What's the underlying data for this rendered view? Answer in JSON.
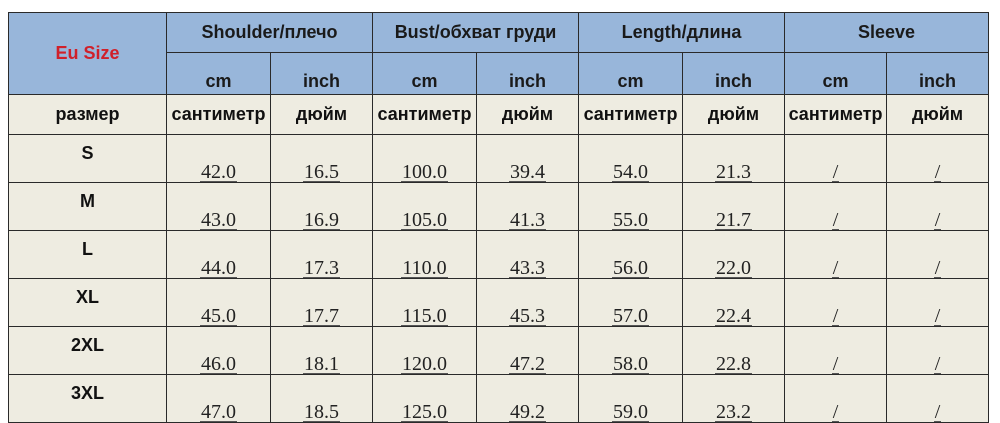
{
  "colors": {
    "header_bg": "#98b6da",
    "body_bg": "#eeece1",
    "eu_size_text": "#d0202a"
  },
  "header": {
    "eu_size": "Eu Size",
    "groups": [
      "Shoulder/плечо",
      "Bust/обхват груди",
      "Length/длина",
      "Sleeve"
    ],
    "units": [
      "cm",
      "inch",
      "cm",
      "inch",
      "cm",
      "inch",
      "cm",
      "inch"
    ]
  },
  "subheader": {
    "label": "размер",
    "units": [
      "сантиметр",
      "дюйм",
      "сантиметр",
      "дюйм",
      "сантиметр",
      "дюйм",
      "сантиметр",
      "дюйм"
    ]
  },
  "rows": [
    {
      "size": "S",
      "values": [
        "42.0",
        "16.5",
        "100.0",
        "39.4",
        "54.0",
        "21.3",
        "/",
        "/"
      ]
    },
    {
      "size": "M",
      "values": [
        "43.0",
        "16.9",
        "105.0",
        "41.3",
        "55.0",
        "21.7",
        "/",
        "/"
      ]
    },
    {
      "size": "L",
      "values": [
        "44.0",
        "17.3",
        "110.0",
        "43.3",
        "56.0",
        "22.0",
        "/",
        "/"
      ]
    },
    {
      "size": "XL",
      "values": [
        "45.0",
        "17.7",
        "115.0",
        "45.3",
        "57.0",
        "22.4",
        "/",
        "/"
      ]
    },
    {
      "size": "2XL",
      "values": [
        "46.0",
        "18.1",
        "120.0",
        "47.2",
        "58.0",
        "22.8",
        "/",
        "/"
      ]
    },
    {
      "size": "3XL",
      "values": [
        "47.0",
        "18.5",
        "125.0",
        "49.2",
        "59.0",
        "23.2",
        "/",
        "/"
      ]
    }
  ]
}
